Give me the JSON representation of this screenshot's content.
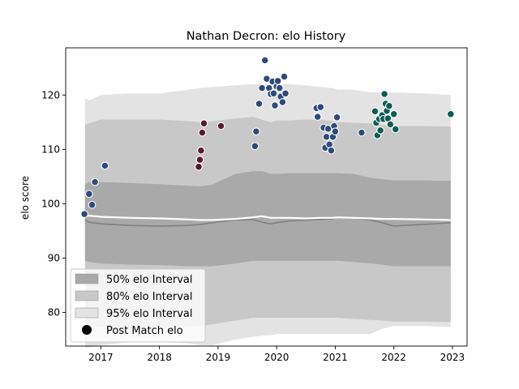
{
  "chart_data": {
    "type": "scatter",
    "title": "Nathan Decron: elo History",
    "xlabel": "",
    "ylabel": "elo score",
    "xlim": [
      2016.4,
      2023.25
    ],
    "ylim": [
      73.8,
      128.7
    ],
    "x_ticks": [
      2017,
      2018,
      2019,
      2020,
      2021,
      2022,
      2023
    ],
    "y_ticks": [
      80,
      90,
      100,
      110,
      120
    ],
    "grid": false,
    "legend_position": "lower-left",
    "legend": {
      "band50": "50% elo Interval",
      "band80": "80% elo Interval",
      "band95": "95% elo Interval",
      "points": "Post Match elo"
    },
    "colors": {
      "band50": "#a9a9a9",
      "band80": "#c8c8c8",
      "band95": "#e3e3e3",
      "mean_line": "#808080",
      "median_line": "#ffffff",
      "points_a": "#2e4a7a",
      "points_b": "#5a1a2e",
      "points_c": "#0d5c55"
    },
    "bands": {
      "x": [
        2016.73,
        2016.8,
        2017.0,
        2017.5,
        2018.0,
        2018.5,
        2018.7,
        2018.9,
        2019.3,
        2019.6,
        2019.75,
        2019.9,
        2020.0,
        2020.2,
        2020.5,
        2020.75,
        2020.95,
        2021.05,
        2021.3,
        2021.6,
        2021.8,
        2022.0,
        2022.5,
        2022.97
      ],
      "p97_5": [
        119.5,
        119.0,
        120.0,
        120.3,
        120.3,
        121.0,
        121.3,
        121.5,
        121.8,
        122.0,
        122.0,
        122.0,
        122.0,
        122.0,
        121.8,
        121.5,
        121.3,
        121.0,
        121.0,
        120.5,
        120.5,
        120.5,
        120.3,
        120.0
      ],
      "p90": [
        114.5,
        114.8,
        115.5,
        115.5,
        115.5,
        115.2,
        115.0,
        115.2,
        115.7,
        116.0,
        115.5,
        115.0,
        115.3,
        115.3,
        115.5,
        115.5,
        115.2,
        115.0,
        114.9,
        114.8,
        114.5,
        114.3,
        114.3,
        114.2
      ],
      "p75": [
        103.5,
        104.0,
        104.0,
        103.8,
        103.6,
        103.3,
        103.2,
        103.5,
        105.5,
        106.0,
        106.0,
        105.5,
        105.5,
        105.6,
        105.6,
        105.6,
        105.6,
        105.6,
        105.5,
        104.8,
        104.5,
        104.3,
        104.3,
        104.2
      ],
      "median": [
        97.8,
        97.8,
        97.6,
        97.4,
        97.3,
        97.1,
        97.0,
        97.0,
        97.2,
        97.5,
        97.7,
        97.4,
        97.4,
        97.4,
        97.3,
        97.4,
        97.4,
        97.5,
        97.4,
        97.3,
        97.2,
        97.2,
        97.1,
        97.0
      ],
      "mean": [
        97.0,
        96.6,
        96.3,
        96.0,
        95.9,
        96.0,
        96.2,
        96.5,
        97.0,
        97.1,
        96.6,
        96.3,
        96.5,
        96.8,
        97.0,
        97.1,
        97.2,
        97.6,
        97.4,
        97.0,
        96.5,
        95.9,
        96.2,
        96.5
      ],
      "p25": [
        89.5,
        89.3,
        89.0,
        88.8,
        88.7,
        88.5,
        88.5,
        88.5,
        89.0,
        89.5,
        89.5,
        89.5,
        89.5,
        89.5,
        89.5,
        89.5,
        89.5,
        89.5,
        89.3,
        89.0,
        88.8,
        88.5,
        88.5,
        88.5
      ],
      "p10": [
        78.0,
        77.5,
        77.3,
        77.3,
        77.3,
        77.4,
        77.5,
        77.8,
        78.5,
        79.0,
        79.0,
        79.0,
        79.0,
        79.0,
        79.0,
        79.0,
        79.0,
        79.0,
        78.8,
        78.6,
        78.5,
        78.3,
        78.3,
        78.2
      ],
      "p2_5": [
        73.5,
        73.5,
        74.0,
        74.5,
        74.5,
        74.3,
        74.0,
        74.0,
        75.0,
        75.5,
        75.7,
        75.8,
        76.0,
        76.0,
        76.0,
        76.0,
        76.0,
        76.0,
        76.0,
        76.0,
        77.0,
        77.5,
        77.5,
        77.3
      ]
    },
    "series": [
      {
        "group": "a",
        "x": [
          2016.72,
          2016.8,
          2016.85,
          2016.9,
          2017.07,
          2019.63,
          2019.65,
          2019.7,
          2019.75,
          2019.8,
          2019.83,
          2019.87,
          2019.9,
          2019.93,
          2019.95,
          2019.97,
          2020.0,
          2020.02,
          2020.05,
          2020.07,
          2020.1,
          2020.13,
          2020.15,
          2020.68,
          2020.7,
          2020.75,
          2020.8,
          2020.83,
          2020.85,
          2020.88,
          2020.9,
          2020.93,
          2020.96,
          2020.98,
          2021.0,
          2021.03,
          2021.45
        ],
        "y": [
          98.1,
          101.8,
          99.8,
          104.0,
          107.0,
          110.6,
          113.3,
          118.4,
          121.3,
          126.4,
          123.0,
          121.3,
          120.2,
          122.5,
          120.3,
          118.1,
          121.6,
          122.6,
          121.3,
          119.7,
          118.7,
          123.4,
          120.3,
          117.6,
          116.0,
          117.8,
          114.0,
          110.3,
          112.3,
          113.8,
          110.9,
          109.8,
          112.3,
          114.3,
          113.3,
          115.9,
          113.1
        ]
      },
      {
        "group": "b",
        "x": [
          2018.67,
          2018.69,
          2018.71,
          2018.73,
          2018.76,
          2019.05
        ],
        "y": [
          106.8,
          108.1,
          109.8,
          113.1,
          114.8,
          114.3
        ]
      },
      {
        "group": "c",
        "x": [
          2021.68,
          2021.7,
          2021.72,
          2021.75,
          2021.77,
          2021.8,
          2021.82,
          2021.84,
          2021.86,
          2021.88,
          2021.9,
          2021.92,
          2021.94,
          2022.0,
          2022.03,
          2022.97
        ],
        "y": [
          117.0,
          114.9,
          112.6,
          115.6,
          113.5,
          116.3,
          115.6,
          120.2,
          118.4,
          117.1,
          115.7,
          118.0,
          114.6,
          116.5,
          113.7,
          116.5
        ]
      }
    ]
  }
}
